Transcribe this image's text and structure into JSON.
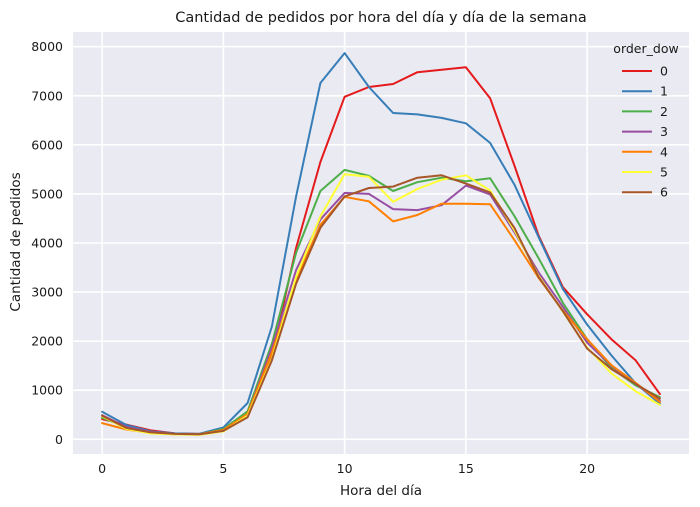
{
  "chart_data": {
    "type": "line",
    "title": "Cantidad de pedidos por hora del día y día de la semana",
    "xlabel": "Hora del día",
    "ylabel": "Cantidad de pedidos",
    "xlim": [
      -1.2,
      24.2
    ],
    "ylim": [
      -300,
      8300
    ],
    "xticks": [
      0,
      5,
      10,
      15,
      20
    ],
    "yticks": [
      0,
      1000,
      2000,
      3000,
      4000,
      5000,
      6000,
      7000,
      8000
    ],
    "grid": true,
    "legend": {
      "title": "order_dow",
      "placement": "top-right"
    },
    "x": [
      0,
      1,
      2,
      3,
      4,
      5,
      6,
      7,
      8,
      9,
      10,
      11,
      12,
      13,
      14,
      15,
      16,
      17,
      18,
      19,
      20,
      21,
      22,
      23
    ],
    "series": [
      {
        "name": "0",
        "color": "#e41a1c",
        "values": [
          410,
          300,
          180,
          120,
          110,
          170,
          480,
          1700,
          3900,
          5650,
          6980,
          7180,
          7240,
          7480,
          7530,
          7580,
          6950,
          5580,
          4150,
          3100,
          2550,
          2040,
          1610,
          920
        ]
      },
      {
        "name": "1",
        "color": "#377eb8",
        "values": [
          560,
          290,
          160,
          120,
          110,
          240,
          740,
          2300,
          4950,
          7260,
          7870,
          7180,
          6650,
          6620,
          6550,
          6440,
          6040,
          5190,
          4120,
          3060,
          2340,
          1710,
          1140,
          720
        ]
      },
      {
        "name": "2",
        "color": "#4daf4a",
        "values": [
          440,
          240,
          140,
          110,
          100,
          210,
          570,
          1950,
          3800,
          5060,
          5490,
          5370,
          5060,
          5240,
          5330,
          5260,
          5320,
          4550,
          3690,
          2780,
          2040,
          1450,
          1100,
          860
        ]
      },
      {
        "name": "3",
        "color": "#984ea3",
        "values": [
          490,
          250,
          150,
          110,
          100,
          190,
          510,
          1870,
          3450,
          4480,
          5020,
          5000,
          4690,
          4670,
          4770,
          5170,
          4990,
          4220,
          3400,
          2700,
          1970,
          1500,
          1130,
          780
        ]
      },
      {
        "name": "4",
        "color": "#ff7f00",
        "values": [
          330,
          200,
          130,
          100,
          100,
          190,
          520,
          1770,
          3250,
          4370,
          4940,
          4850,
          4440,
          4570,
          4800,
          4800,
          4790,
          4060,
          3290,
          2620,
          2040,
          1510,
          1150,
          760
        ]
      },
      {
        "name": "5",
        "color": "#ffff33",
        "values": [
          470,
          210,
          120,
          100,
          90,
          160,
          480,
          1640,
          3310,
          4540,
          5400,
          5350,
          4840,
          5100,
          5290,
          5380,
          5070,
          4260,
          3330,
          2600,
          1870,
          1340,
          980,
          700
        ]
      },
      {
        "name": "6",
        "color": "#a65628",
        "values": [
          480,
          230,
          140,
          110,
          100,
          170,
          450,
          1610,
          3170,
          4310,
          4950,
          5120,
          5150,
          5330,
          5380,
          5210,
          5030,
          4310,
          3310,
          2610,
          1850,
          1430,
          1130,
          830
        ]
      }
    ]
  }
}
